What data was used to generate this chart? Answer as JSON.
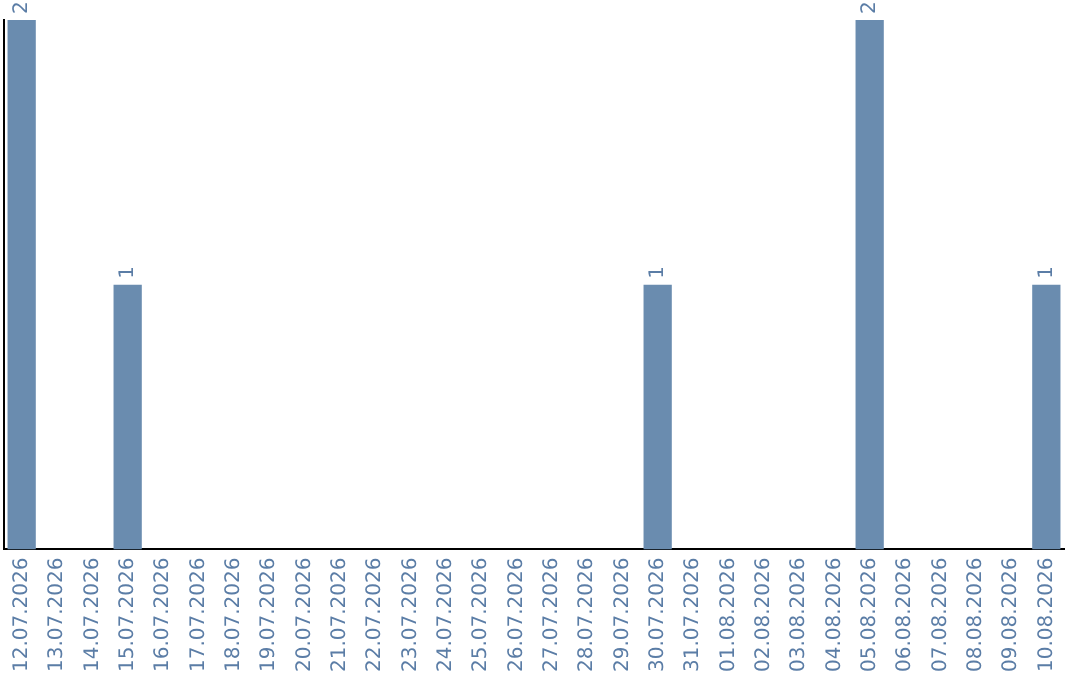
{
  "chart_data": {
    "type": "bar",
    "categories": [
      "12.07.2026",
      "13.07.2026",
      "14.07.2026",
      "15.07.2026",
      "16.07.2026",
      "17.07.2026",
      "18.07.2026",
      "19.07.2026",
      "20.07.2026",
      "21.07.2026",
      "22.07.2026",
      "23.07.2026",
      "24.07.2026",
      "25.07.2026",
      "26.07.2026",
      "27.07.2026",
      "28.07.2026",
      "29.07.2026",
      "30.07.2026",
      "31.07.2026",
      "01.08.2026",
      "02.08.2026",
      "03.08.2026",
      "04.08.2026",
      "05.08.2026",
      "06.08.2026",
      "07.08.2026",
      "08.08.2026",
      "09.08.2026",
      "10.08.2026"
    ],
    "values": [
      2,
      0,
      0,
      1,
      0,
      0,
      0,
      0,
      0,
      0,
      0,
      0,
      0,
      0,
      0,
      0,
      0,
      0,
      1,
      0,
      0,
      0,
      0,
      0,
      2,
      0,
      0,
      0,
      0,
      1
    ],
    "value_labels": [
      "2",
      null,
      null,
      "1",
      null,
      null,
      null,
      null,
      null,
      null,
      null,
      null,
      null,
      null,
      null,
      null,
      null,
      null,
      "1",
      null,
      null,
      null,
      null,
      null,
      "2",
      null,
      null,
      null,
      null,
      "1"
    ],
    "color": "#6a8caf",
    "grid": false,
    "legend": false
  }
}
